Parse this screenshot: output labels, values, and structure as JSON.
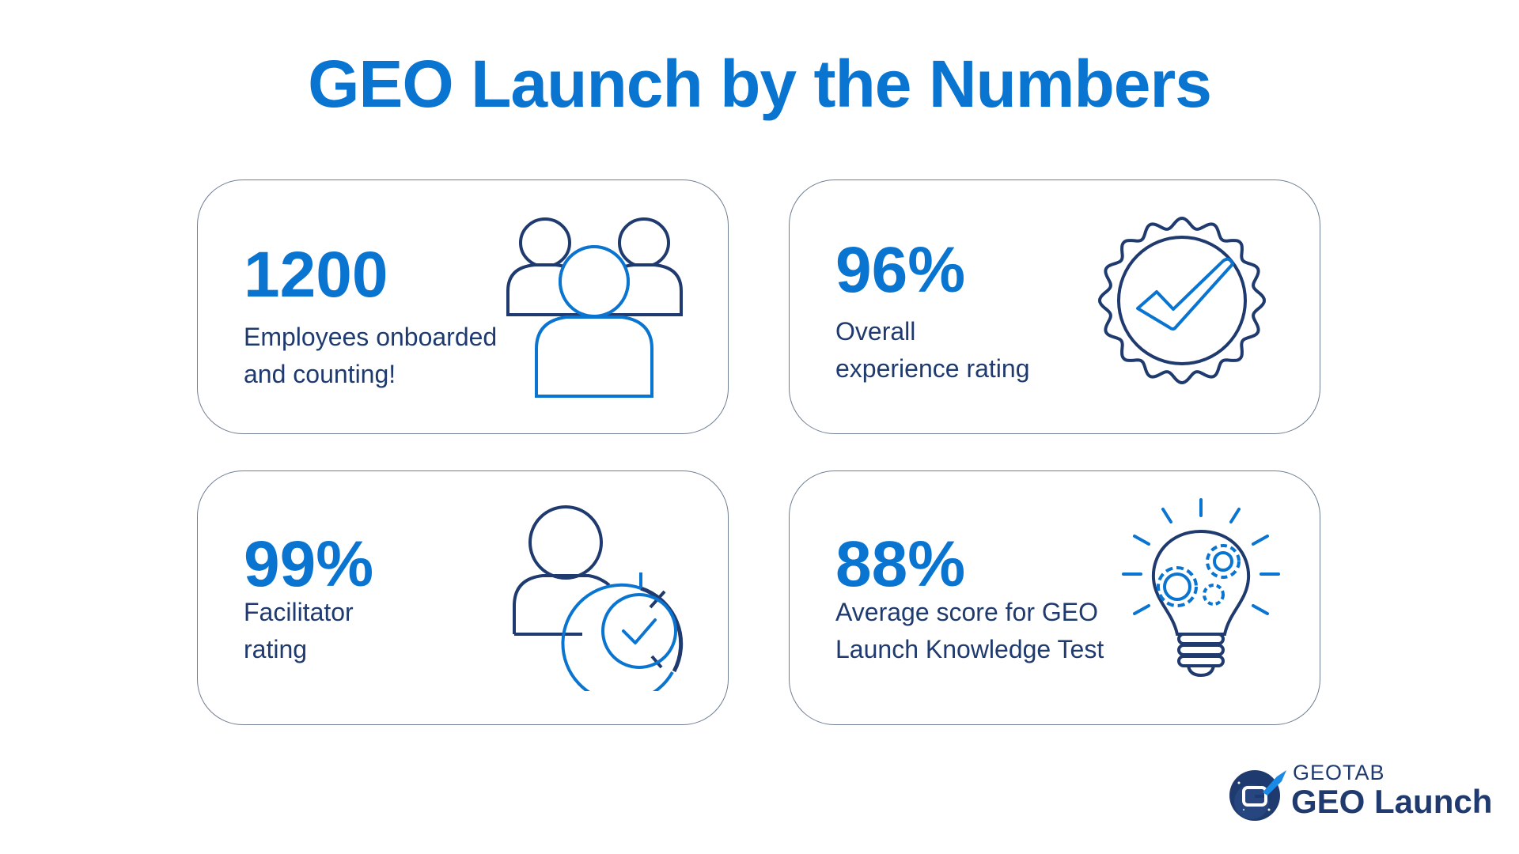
{
  "title": "GEO Launch by the Numbers",
  "colors": {
    "accent": "#0a75d1",
    "navy": "#1f3a6e",
    "border": "#6f7f93"
  },
  "cards": [
    {
      "value": "1200",
      "line1": "Employees onboarded",
      "line2": "and counting!",
      "icon": "people-group-icon"
    },
    {
      "value": "96%",
      "line1": "Overall",
      "line2": "experience rating",
      "icon": "check-badge-icon"
    },
    {
      "value": "99%",
      "line1": "Facilitator",
      "line2": "rating",
      "icon": "user-rating-check-icon"
    },
    {
      "value": "88%",
      "line1": "Average score for GEO",
      "line2": "Launch Knowledge Test",
      "icon": "lightbulb-gears-icon"
    }
  ],
  "logo": {
    "brand": "GEOTAB",
    "product": "GEO Launch",
    "icon": "rocket-g-logo-icon"
  }
}
